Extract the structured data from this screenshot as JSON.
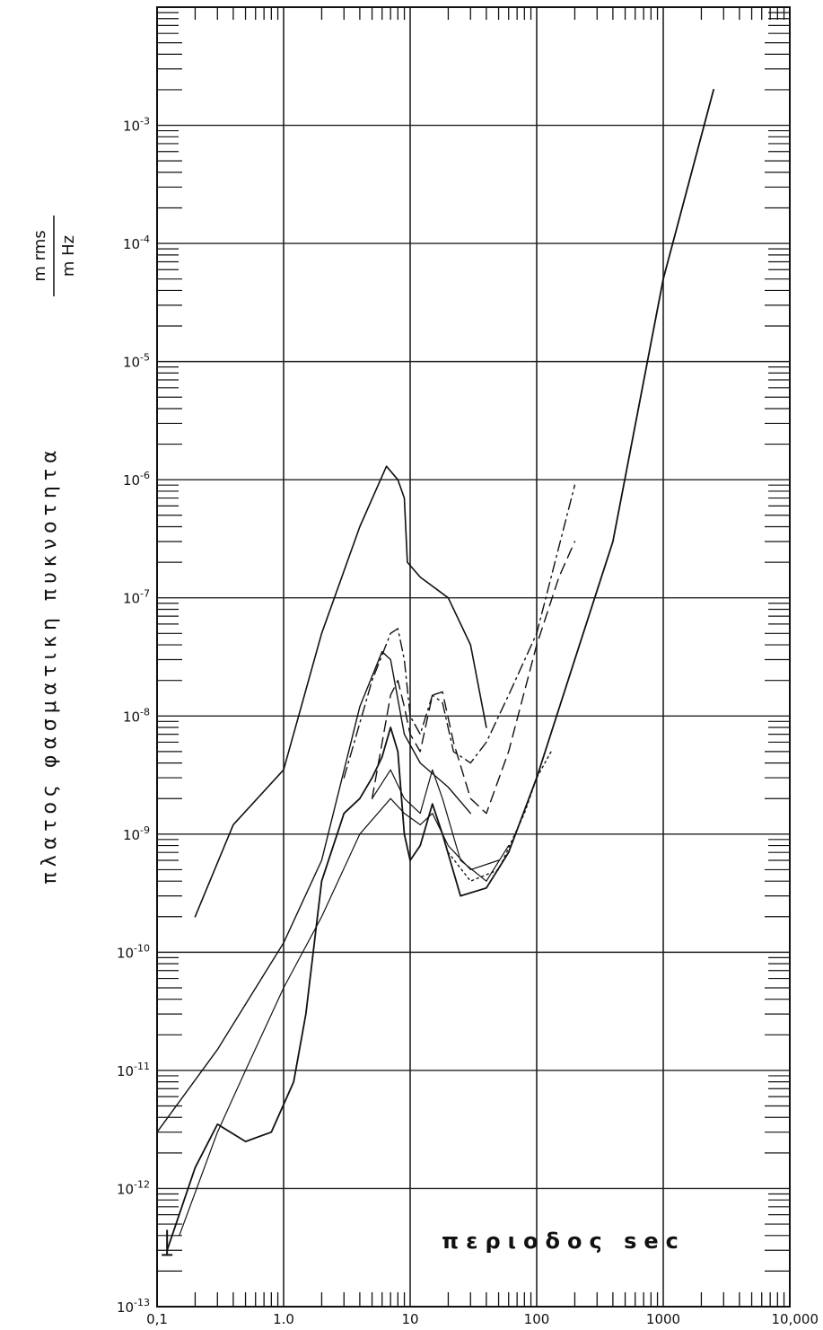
{
  "chart_data": {
    "type": "line",
    "x_scale": "log",
    "y_scale": "log",
    "xlim": [
      0.1,
      10000
    ],
    "ylim": [
      1e-13,
      0.01
    ],
    "grid": true,
    "xlabel": "περιοδος sec",
    "ylabel": "πλατος φασματικη πυκνοτητα",
    "y_unit_numerator": "m rms",
    "y_unit_denominator": "m Hz",
    "x_tick_labels": [
      "0,1",
      "1.0",
      "10",
      "100",
      "1000",
      "10,000"
    ],
    "x_tick_values": [
      0.1,
      1,
      10,
      100,
      1000,
      10000
    ],
    "y_tick_labels": [
      "10-13",
      "10-12",
      "10-11",
      "10-10",
      "10-9",
      "10-8",
      "10-7",
      "10-6",
      "10-5",
      "10-4",
      "10-3"
    ],
    "y_tick_values": [
      1e-13,
      1e-12,
      1e-11,
      1e-10,
      1e-09,
      1e-08,
      1e-07,
      1e-06,
      1e-05,
      0.0001,
      0.001
    ],
    "series": [
      {
        "style": "solid",
        "width": 1.6,
        "points": [
          [
            0.2,
            2e-10
          ],
          [
            0.4,
            1.2e-09
          ],
          [
            1,
            3.5e-09
          ],
          [
            2,
            5e-08
          ],
          [
            4,
            4e-07
          ],
          [
            6.5,
            1.3e-06
          ],
          [
            8,
            1e-06
          ],
          [
            9,
            7e-07
          ],
          [
            9.5,
            2e-07
          ],
          [
            12,
            1.5e-07
          ],
          [
            20,
            1e-07
          ],
          [
            30,
            4e-08
          ],
          [
            40,
            8e-09
          ]
        ]
      },
      {
        "style": "solid",
        "width": 1.4,
        "points": [
          [
            0.1,
            3e-12
          ],
          [
            0.3,
            1.5e-11
          ],
          [
            1,
            1.2e-10
          ],
          [
            2,
            6e-10
          ],
          [
            4,
            1.2e-08
          ],
          [
            6,
            3.5e-08
          ],
          [
            7,
            3e-08
          ],
          [
            9,
            7e-09
          ],
          [
            12,
            4e-09
          ],
          [
            20,
            2.5e-09
          ],
          [
            30,
            1.5e-09
          ]
        ]
      },
      {
        "style": "dashdot",
        "width": 1.4,
        "points": [
          [
            3,
            3e-09
          ],
          [
            5,
            2e-08
          ],
          [
            7,
            5e-08
          ],
          [
            8,
            5.5e-08
          ],
          [
            9,
            3e-08
          ],
          [
            10,
            1e-08
          ],
          [
            12,
            7e-09
          ],
          [
            15,
            1.5e-08
          ],
          [
            18,
            1.3e-08
          ],
          [
            22,
            5e-09
          ],
          [
            30,
            4e-09
          ],
          [
            40,
            6e-09
          ],
          [
            60,
            1.5e-08
          ],
          [
            100,
            5e-08
          ],
          [
            200,
            9e-07
          ]
        ]
      },
      {
        "style": "dashed",
        "width": 1.4,
        "points": [
          [
            5,
            2e-09
          ],
          [
            7,
            1.5e-08
          ],
          [
            8,
            2e-08
          ],
          [
            9,
            1.2e-08
          ],
          [
            10,
            7e-09
          ],
          [
            12,
            5e-09
          ],
          [
            15,
            1.5e-08
          ],
          [
            18,
            1.6e-08
          ],
          [
            22,
            6e-09
          ],
          [
            30,
            2e-09
          ],
          [
            40,
            1.5e-09
          ],
          [
            60,
            5e-09
          ],
          [
            100,
            4e-08
          ],
          [
            150,
            1.5e-07
          ],
          [
            200,
            3e-07
          ]
        ]
      },
      {
        "style": "solid",
        "width": 1.8,
        "points": [
          [
            0.12,
            3e-13
          ],
          [
            0.2,
            1.5e-12
          ],
          [
            0.3,
            3.5e-12
          ],
          [
            0.5,
            2.5e-12
          ],
          [
            0.8,
            3e-12
          ],
          [
            1.2,
            8e-12
          ],
          [
            1.5,
            3e-11
          ],
          [
            2,
            4e-10
          ],
          [
            3,
            1.5e-09
          ],
          [
            4,
            2e-09
          ],
          [
            5,
            3e-09
          ],
          [
            6,
            4.5e-09
          ],
          [
            7,
            8e-09
          ],
          [
            8,
            5e-09
          ],
          [
            9,
            1e-09
          ],
          [
            10,
            6e-10
          ],
          [
            12,
            8e-10
          ],
          [
            15,
            1.8e-09
          ],
          [
            18,
            1e-09
          ],
          [
            25,
            3e-10
          ],
          [
            40,
            3.5e-10
          ],
          [
            60,
            7e-10
          ],
          [
            100,
            3e-09
          ],
          [
            200,
            3e-08
          ],
          [
            400,
            3e-07
          ],
          [
            1000,
            5e-05
          ],
          [
            2500,
            0.002
          ]
        ]
      },
      {
        "style": "solid",
        "width": 1.2,
        "points": [
          [
            0.15,
            4e-13
          ],
          [
            0.3,
            3e-12
          ],
          [
            0.5,
            1e-11
          ],
          [
            1,
            5e-11
          ],
          [
            2,
            2e-10
          ],
          [
            4,
            1e-09
          ],
          [
            7,
            2e-09
          ],
          [
            9,
            1.5e-09
          ],
          [
            12,
            1.2e-09
          ],
          [
            15,
            1.5e-09
          ],
          [
            20,
            8e-10
          ],
          [
            30,
            5e-10
          ],
          [
            50,
            6e-10
          ]
        ]
      },
      {
        "style": "solid",
        "width": 1.2,
        "points": [
          [
            5,
            2e-09
          ],
          [
            7,
            3.5e-09
          ],
          [
            9,
            2e-09
          ],
          [
            12,
            1.5e-09
          ],
          [
            15,
            3.5e-09
          ],
          [
            18,
            2e-09
          ],
          [
            25,
            6e-10
          ],
          [
            40,
            4e-10
          ],
          [
            60,
            8e-10
          ]
        ]
      },
      {
        "style": "dotted",
        "width": 1.4,
        "points": [
          [
            20,
            7e-10
          ],
          [
            30,
            4e-10
          ],
          [
            50,
            5e-10
          ],
          [
            80,
            1.5e-09
          ],
          [
            100,
            3e-09
          ],
          [
            130,
            5e-09
          ]
        ]
      }
    ]
  }
}
